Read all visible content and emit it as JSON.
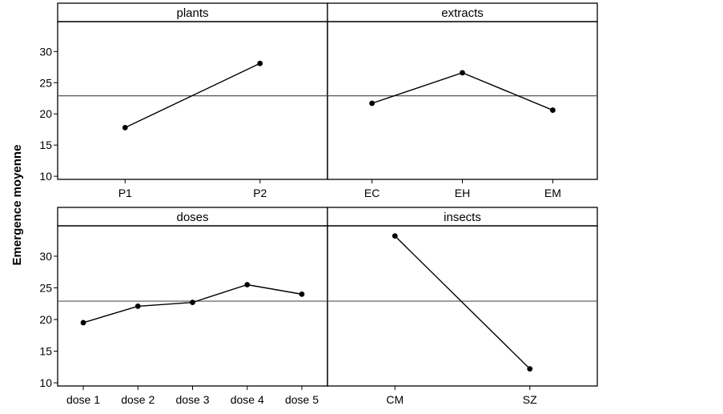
{
  "chart_data": {
    "type": "line",
    "ylabel": "Emergence moyenne",
    "ylim": [
      9.5,
      34.8
    ],
    "yticks": [
      10,
      15,
      20,
      25,
      30
    ],
    "reference_line": 22.9,
    "grid": false,
    "panels": [
      {
        "title": "plants",
        "categories": [
          "P1",
          "P2"
        ],
        "values": [
          17.8,
          28.1
        ]
      },
      {
        "title": "extracts",
        "categories": [
          "EC",
          "EH",
          "EM"
        ],
        "values": [
          21.7,
          26.6,
          20.6
        ]
      },
      {
        "title": "doses",
        "categories": [
          "dose 1",
          "dose 2",
          "dose 3",
          "dose 4",
          "dose 5"
        ],
        "values": [
          19.5,
          22.1,
          22.7,
          25.5,
          24.0
        ]
      },
      {
        "title": "insects",
        "categories": [
          "CM",
          "SZ"
        ],
        "values": [
          33.2,
          12.2
        ]
      }
    ]
  }
}
